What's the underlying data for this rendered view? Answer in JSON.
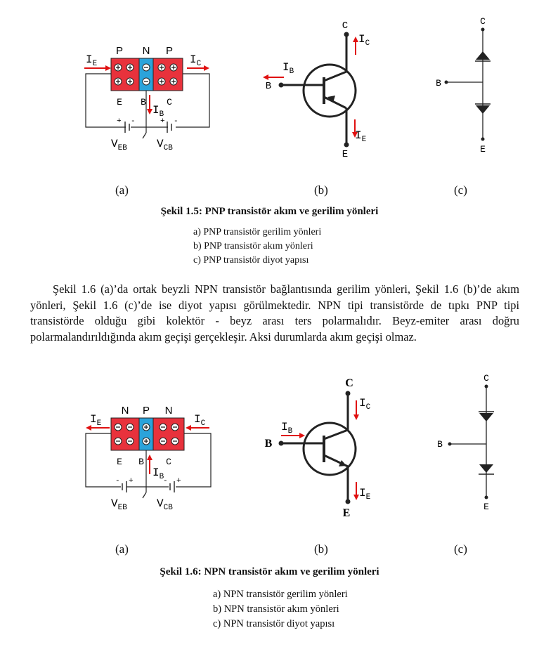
{
  "colors": {
    "p_region": "#e8323c",
    "n_region": "#2ba3da",
    "arrow": "#e01010",
    "wire": "#222222"
  },
  "fig15": {
    "a": {
      "regions": [
        "P",
        "N",
        "P"
      ],
      "terminals": [
        "E",
        "B",
        "C"
      ],
      "currents": {
        "ie": "I",
        "ie_sub": "E",
        "ic": "I",
        "ic_sub": "C",
        "ib": "I",
        "ib_sub": "B"
      },
      "sources": {
        "veb": "V",
        "veb_sub": "EB",
        "vcb": "V",
        "vcb_sub": "CB"
      },
      "polarity": [
        "+",
        "-",
        "+",
        "-"
      ],
      "carriers_left": "⊕",
      "carriers_mid": "⊖",
      "carriers_right": "⊕"
    },
    "b": {
      "c": "C",
      "b": "B",
      "e": "E",
      "ic": "I",
      "ic_sub": "C",
      "ib": "I",
      "ib_sub": "B",
      "ie": "I",
      "ie_sub": "E"
    },
    "c": {
      "c": "C",
      "b": "B",
      "e": "E"
    },
    "labels": [
      "(a)",
      "(b)",
      "(c)"
    ],
    "caption": "Şekil 1.5: PNP transistör akım ve gerilim yönleri",
    "list": [
      "a) PNP transistör gerilim yönleri",
      "b) PNP transistör akım yönleri",
      "c) PNP transistör diyot yapısı"
    ]
  },
  "paragraph": "Şekil 1.6 (a)’da ortak beyzli NPN transistör bağlantısında gerilim yönleri, Şekil 1.6 (b)’de akım yönleri, Şekil 1.6 (c)’de ise diyot yapısı görülmektedir. NPN tipi transistörde de tıpkı PNP tipi transistörde olduğu gibi kolektör - beyz arası ters polarmalıdır. Beyz-emiter arası doğru polarmalandırıldığında akım geçişi gerçekleşir. Aksi durumlarda akım geçişi olmaz.",
  "fig16": {
    "a": {
      "regions": [
        "N",
        "P",
        "N"
      ],
      "terminals": [
        "E",
        "B",
        "C"
      ],
      "currents": {
        "ie": "I",
        "ie_sub": "E",
        "ic": "I",
        "ic_sub": "C",
        "ib": "I",
        "ib_sub": "B"
      },
      "sources": {
        "veb": "V",
        "veb_sub": "EB",
        "vcb": "V",
        "vcb_sub": "CB"
      },
      "polarity": [
        "-",
        "+",
        "-",
        "+"
      ]
    },
    "b": {
      "c": "C",
      "b": "B",
      "e": "E",
      "ic": "I",
      "ic_sub": "C",
      "ib": "I",
      "ib_sub": "B",
      "ie": "I",
      "ie_sub": "E"
    },
    "c": {
      "c": "C",
      "b": "B",
      "e": "E"
    },
    "labels": [
      "(a)",
      "(b)",
      "(c)"
    ],
    "caption": "Şekil 1.6: NPN transistör akım ve gerilim yönleri",
    "list": [
      "a) NPN transistör gerilim yönleri",
      "b) NPN transistör akım yönleri",
      "c) NPN transistör diyot yapısı"
    ]
  }
}
